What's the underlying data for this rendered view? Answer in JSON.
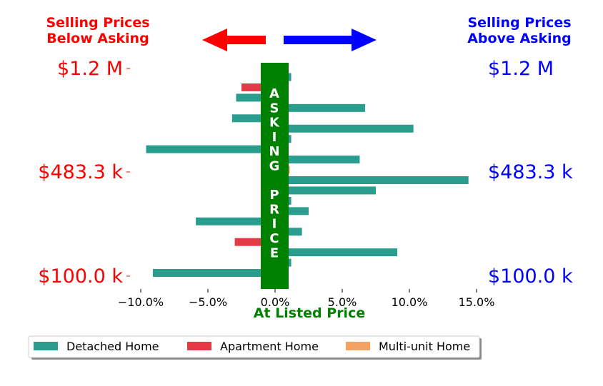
{
  "chart_data": {
    "type": "bar",
    "orientation": "horizontal",
    "headers": {
      "left": [
        "Selling Prices",
        "Below Asking"
      ],
      "right": [
        "Selling Prices",
        "Above Asking"
      ]
    },
    "band_text": [
      "A",
      "S",
      "K",
      "I",
      "N",
      "G",
      "",
      "P",
      "R",
      "I",
      "C",
      "E"
    ],
    "xlabel": "At Listed Price",
    "x_ticks": [
      "−10.0%",
      "−5.0%",
      "0.0%",
      "5.0%",
      "10.0%",
      "15.0%"
    ],
    "xlim": [
      -10.5,
      15.5
    ],
    "y_tick_labels": [
      "$1.2 M",
      "$483.3 k",
      "$100.0 k"
    ],
    "series": [
      {
        "name": "Detached Home",
        "color": "#2a9d8f",
        "values": [
          1.2,
          0,
          -2.9,
          6.7,
          -3.2,
          10.3,
          1.2,
          -9.6,
          6.3,
          0,
          14.4,
          7.5,
          1.2,
          2.5,
          -5.9,
          2.0,
          0,
          9.1,
          1.2,
          -9.1
        ]
      },
      {
        "name": "Apartment Home",
        "color": "#e63946",
        "values": [
          0,
          -2.5,
          0,
          0,
          0,
          0,
          0,
          0,
          0,
          0,
          0,
          0,
          0,
          0,
          0,
          0,
          -3.0,
          0,
          0,
          0
        ]
      },
      {
        "name": "Multi-unit Home",
        "color": "#f4a261",
        "values": [
          0,
          0,
          0,
          0,
          0,
          0,
          0,
          0,
          0,
          1.1,
          0,
          0,
          0,
          0,
          0,
          0,
          0,
          0,
          0,
          0
        ]
      }
    ],
    "colors": {
      "below": "#ff0000",
      "above": "#0000ff",
      "band": "#008000",
      "label": "#008000"
    },
    "legend_position": "bottom-left"
  }
}
